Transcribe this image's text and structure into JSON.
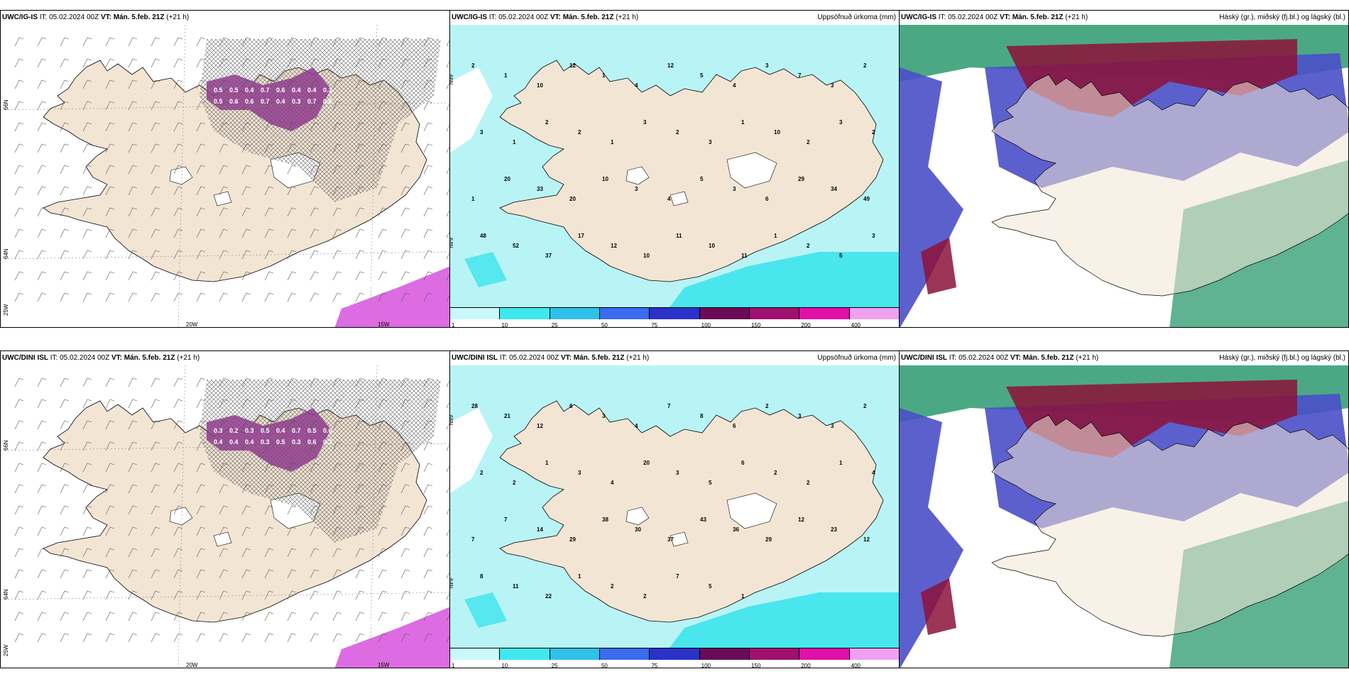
{
  "colors": {
    "land": "#f3e5d4",
    "sea": "#ffffff",
    "precip_light": "#b8f4f6",
    "precip_mid": "#3ee4ec",
    "purple": "#8e3c8c",
    "magenta": "#d95ce0",
    "deep_red": "#8c1238",
    "blue_cloud": "#4a4fc8",
    "green_cloud": "#2a9a6e"
  },
  "rows": [
    {
      "model": "UWC/IG-IS",
      "panels": [
        {
          "kind": "wind",
          "title_model": "UWC/IG-IS",
          "title_it": "IT: 05.02.2024 00Z",
          "title_vt": "VT: Mán. 5.feb. 21Z",
          "title_lead": "(+21 h)",
          "right_label": "",
          "axis_labels": [
            "66N",
            "64N",
            "25W",
            "20W",
            "15W"
          ],
          "values": [
            "0.5",
            "0.5",
            "0.4",
            "0.7",
            "0.6",
            "0.4",
            "0.4",
            "0.3",
            "0.5",
            "0.6",
            "0.6",
            "0.7",
            "0.4",
            "0.3",
            "0.7",
            "0.4",
            "0.3",
            "0.9"
          ]
        },
        {
          "kind": "precip",
          "title_model": "UWC/IG-IS",
          "title_it": "IT: 05.02.2024 00Z",
          "title_vt": "VT: Mán. 5.feb. 21Z",
          "title_lead": "(+21 h)",
          "right_label": "Uppsöfnuð úrkoma (mm)",
          "axis_labels": [
            "66N",
            "64N"
          ],
          "values": [
            "2",
            "1",
            "10",
            "12",
            "1",
            "4",
            "12",
            "5",
            "4",
            "3",
            "7",
            "3",
            "2",
            "3",
            "1",
            "2",
            "2",
            "1",
            "3",
            "2",
            "3",
            "1",
            "10",
            "2",
            "3",
            "2",
            "1",
            "20",
            "33",
            "20",
            "10",
            "3",
            "4",
            "5",
            "3",
            "6",
            "29",
            "34",
            "49",
            "48",
            "52",
            "37",
            "17",
            "12",
            "10",
            "11",
            "10",
            "11",
            "1",
            "2",
            "5",
            "3"
          ],
          "colorbar": [
            "1",
            "10",
            "25",
            "50",
            "75",
            "100",
            "150",
            "200",
            "400"
          ]
        },
        {
          "kind": "cloud",
          "title_model": "UWC/IG-IS",
          "title_it": "IT: 05.02.2024 00Z",
          "title_vt": "VT: Mán. 5.feb. 21Z",
          "title_lead": "(+21 h)",
          "right_label": "Háský (gr.), miðský (fj.bl.) og lágský (bl.)"
        }
      ]
    },
    {
      "model": "UWC/DINI ISL",
      "panels": [
        {
          "kind": "wind",
          "title_model": "UWC/DINI ISL",
          "title_it": "IT: 05.02.2024 00Z",
          "title_vt": "VT: Mán. 5.feb. 21Z",
          "title_lead": "(+21 h)",
          "right_label": "",
          "axis_labels": [
            "66N",
            "64N",
            "25W",
            "20W",
            "15W"
          ],
          "values": [
            "0.3",
            "0.2",
            "0.3",
            "0.5",
            "0.4",
            "0.7",
            "0.5",
            "0.6",
            "0.4",
            "0.4",
            "0.4",
            "0.3",
            "0.5",
            "0.3",
            "0.6",
            "0.3",
            "0.2",
            "0.5",
            "0.4"
          ]
        },
        {
          "kind": "precip",
          "title_model": "UWC/DINI ISL",
          "title_it": "IT: 05.02.2024 00Z",
          "title_vt": "VT: Mán. 5.feb. 21Z",
          "title_lead": "(+21 h)",
          "right_label": "Uppsöfnuð úrkoma (mm)",
          "axis_labels": [
            "66N",
            "64N"
          ],
          "values": [
            "28",
            "21",
            "12",
            "6",
            "3",
            "4",
            "7",
            "8",
            "6",
            "2",
            "3",
            "3",
            "2",
            "2",
            "2",
            "1",
            "3",
            "4",
            "20",
            "3",
            "5",
            "6",
            "2",
            "2",
            "1",
            "4",
            "7",
            "7",
            "14",
            "29",
            "38",
            "30",
            "37",
            "43",
            "36",
            "29",
            "12",
            "23",
            "12",
            "8",
            "11",
            "22",
            "1",
            "2",
            "2",
            "7",
            "5",
            "1"
          ],
          "colorbar": [
            "1",
            "10",
            "25",
            "50",
            "75",
            "100",
            "150",
            "200",
            "400"
          ]
        },
        {
          "kind": "cloud",
          "title_model": "UWC/DINI ISL",
          "title_it": "IT: 05.02.2024 00Z",
          "title_vt": "VT: Mán. 5.feb. 21Z",
          "title_lead": "(+21 h)",
          "right_label": "Háský (gr.), miðský (fj.bl.) og lágský (bl.)"
        }
      ]
    }
  ]
}
